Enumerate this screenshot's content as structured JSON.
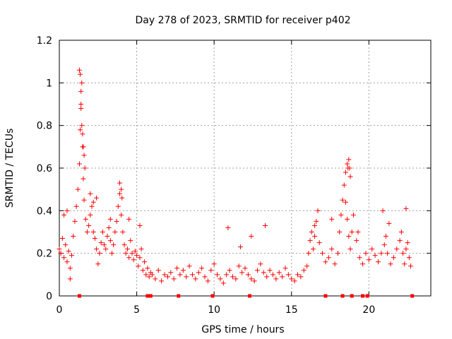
{
  "chart_data": {
    "type": "scatter",
    "title": "Day 278 of 2023, SRMTID for receiver p402",
    "xlabel": "GPS time / hours",
    "ylabel": "SRMTID / TECUs",
    "xlim": [
      0,
      24
    ],
    "ylim": [
      0,
      1.2
    ],
    "xticks": [
      0,
      5,
      10,
      15,
      20
    ],
    "xtick_labels": [
      "0",
      "5",
      "10",
      "15",
      "20"
    ],
    "yticks": [
      0,
      0.2,
      0.4,
      0.6,
      0.8,
      1.0,
      1.2
    ],
    "ytick_labels": [
      "0",
      "0.2",
      "0.4",
      "0.6",
      "0.8",
      "1",
      "1.2"
    ],
    "grid": true,
    "marker": "+",
    "series": [
      {
        "name": "SRMTID",
        "color": "#ff0000",
        "x": [
          0.0,
          0.1,
          0.2,
          0.3,
          0.4,
          0.5,
          0.6,
          0.7,
          0.8,
          0.9,
          1.0,
          1.1,
          1.2,
          1.3,
          1.35,
          1.4,
          1.45,
          1.5,
          1.55,
          1.6,
          1.7,
          1.8,
          1.9,
          2.0,
          2.1,
          2.2,
          2.3,
          2.4,
          2.5,
          2.6,
          2.7,
          2.8,
          2.9,
          3.0,
          3.1,
          3.2,
          3.3,
          3.4,
          3.5,
          3.6,
          3.7,
          3.8,
          3.9,
          4.0,
          4.1,
          4.2,
          4.3,
          4.4,
          4.5,
          4.6,
          4.7,
          4.8,
          4.9,
          5.0,
          5.1,
          5.2,
          5.3,
          5.4,
          5.5,
          5.6,
          5.7,
          5.8,
          5.9,
          6.0,
          6.2,
          6.4,
          6.6,
          6.8,
          7.0,
          7.2,
          7.4,
          7.6,
          7.8,
          8.0,
          8.2,
          8.4,
          8.6,
          8.8,
          9.0,
          9.2,
          9.4,
          9.6,
          9.8,
          10.0,
          10.2,
          10.4,
          10.6,
          10.8,
          11.0,
          11.2,
          11.4,
          11.6,
          11.8,
          12.0,
          12.2,
          12.4,
          12.6,
          12.8,
          13.0,
          13.2,
          13.4,
          13.6,
          13.8,
          14.0,
          14.2,
          14.4,
          14.6,
          14.8,
          15.0,
          15.2,
          15.4,
          15.6,
          15.8,
          16.0,
          16.1,
          16.2,
          16.3,
          16.4,
          16.5,
          16.6,
          16.7,
          16.8,
          17.0,
          17.2,
          17.4,
          17.6,
          17.8,
          18.0,
          18.1,
          18.2,
          18.3,
          18.4,
          18.5,
          18.6,
          18.7,
          18.8,
          18.9,
          19.0,
          19.2,
          19.4,
          19.6,
          19.8,
          20.0,
          20.2,
          20.4,
          20.6,
          20.8,
          21.0,
          21.1,
          21.2,
          21.4,
          21.6,
          21.8,
          22.0,
          22.1,
          22.2,
          22.3,
          22.4,
          22.5,
          22.6,
          22.7,
          1.3,
          1.35,
          1.4,
          1.4,
          1.45,
          1.5,
          1.55,
          1.6,
          1.65,
          3.9,
          4.0,
          4.05,
          18.5,
          18.6,
          18.7,
          18.75,
          18.8,
          18.65,
          0.3,
          0.5,
          0.7,
          2.0,
          2.2,
          2.4,
          3.3,
          4.5,
          5.2,
          10.9,
          11.7,
          12.4,
          13.3,
          16.5,
          17.6,
          19.3,
          20.9,
          21.3,
          22.4
        ],
        "y": [
          0.22,
          0.2,
          0.27,
          0.18,
          0.24,
          0.16,
          0.21,
          0.13,
          0.19,
          0.28,
          0.35,
          0.42,
          0.5,
          0.62,
          0.78,
          0.88,
          1.0,
          0.7,
          0.55,
          0.45,
          0.36,
          0.3,
          0.33,
          0.38,
          0.42,
          0.3,
          0.27,
          0.22,
          0.15,
          0.2,
          0.25,
          0.3,
          0.24,
          0.22,
          0.28,
          0.32,
          0.26,
          0.2,
          0.24,
          0.3,
          0.35,
          0.42,
          0.48,
          0.38,
          0.3,
          0.24,
          0.2,
          0.22,
          0.18,
          0.26,
          0.2,
          0.17,
          0.21,
          0.19,
          0.14,
          0.18,
          0.22,
          0.12,
          0.16,
          0.1,
          0.13,
          0.09,
          0.11,
          0.1,
          0.08,
          0.12,
          0.07,
          0.1,
          0.09,
          0.11,
          0.08,
          0.13,
          0.1,
          0.12,
          0.09,
          0.14,
          0.1,
          0.08,
          0.11,
          0.13,
          0.09,
          0.07,
          0.12,
          0.15,
          0.1,
          0.08,
          0.06,
          0.1,
          0.12,
          0.09,
          0.08,
          0.14,
          0.11,
          0.13,
          0.1,
          0.08,
          0.07,
          0.12,
          0.15,
          0.11,
          0.09,
          0.12,
          0.1,
          0.08,
          0.11,
          0.09,
          0.13,
          0.1,
          0.08,
          0.07,
          0.1,
          0.09,
          0.12,
          0.14,
          0.2,
          0.26,
          0.3,
          0.22,
          0.28,
          0.35,
          0.4,
          0.25,
          0.2,
          0.16,
          0.18,
          0.22,
          0.15,
          0.2,
          0.3,
          0.38,
          0.45,
          0.52,
          0.44,
          0.36,
          0.28,
          0.22,
          0.3,
          0.38,
          0.26,
          0.18,
          0.15,
          0.2,
          0.17,
          0.22,
          0.19,
          0.16,
          0.2,
          0.24,
          0.28,
          0.2,
          0.15,
          0.18,
          0.22,
          0.26,
          0.3,
          0.2,
          0.15,
          0.22,
          0.25,
          0.18,
          0.14,
          1.06,
          1.04,
          0.96,
          0.9,
          0.8,
          0.76,
          0.7,
          0.66,
          0.6,
          0.53,
          0.5,
          0.46,
          0.58,
          0.62,
          0.64,
          0.6,
          0.56,
          0.6,
          0.38,
          0.4,
          0.08,
          0.48,
          0.44,
          0.46,
          0.36,
          0.36,
          0.33,
          0.32,
          0.23,
          0.28,
          0.33,
          0.33,
          0.36,
          0.3,
          0.4,
          0.34,
          0.41
        ]
      }
    ],
    "zero_markers_x": [
      1.3,
      5.7,
      5.9,
      7.7,
      9.9,
      12.3,
      17.2,
      18.3,
      18.9,
      19.6,
      19.9,
      22.8
    ]
  }
}
